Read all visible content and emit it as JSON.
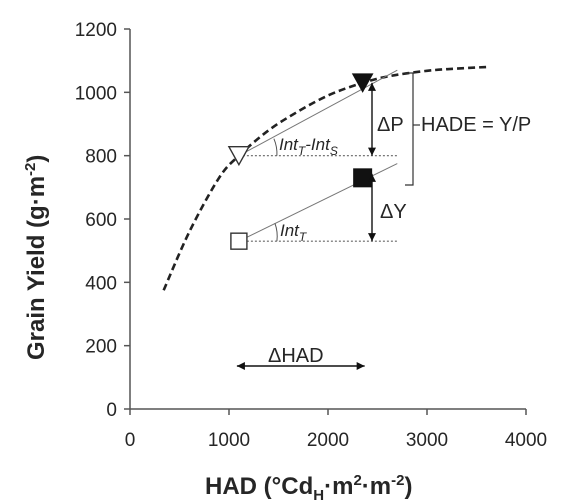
{
  "chart_data": {
    "type": "scatter",
    "title": "",
    "xlabel": "HAD (°Cd",
    "xlabel_sub": "H",
    "xlabel_mid": "·m",
    "xlabel_sup1": "2",
    "xlabel_mid2": "·m",
    "xlabel_sup2": "-2",
    "xlabel_end": ")",
    "ylabel": "Grain Yield (g·m",
    "ylabel_sup": "-2",
    "ylabel_end": ")",
    "xlim": [
      0,
      4000
    ],
    "ylim": [
      0,
      1200
    ],
    "x_ticks": [
      0,
      1000,
      2000,
      3000,
      4000
    ],
    "x_tick_labels": [
      "0",
      "1000",
      "2000",
      "3000",
      "4000"
    ],
    "y_ticks": [
      0,
      200,
      400,
      600,
      800,
      1000,
      1200
    ],
    "y_tick_labels": [
      "0",
      "200",
      "400",
      "600",
      "800",
      "1000",
      "1200"
    ],
    "grid": false,
    "curve": {
      "style": "dashed",
      "x": [
        340,
        600,
        900,
        1100,
        1400,
        1700,
        2000,
        2300,
        2600,
        3000,
        3300,
        3600
      ],
      "y": [
        375,
        560,
        730,
        800,
        880,
        940,
        990,
        1025,
        1050,
        1068,
        1075,
        1080
      ]
    },
    "points": [
      {
        "marker": "open-square",
        "x": 1100,
        "y": 530
      },
      {
        "marker": "filled-square",
        "x": 2350,
        "y": 730
      },
      {
        "marker": "open-triangle-down",
        "x": 1100,
        "y": 800
      },
      {
        "marker": "filled-triangle-down",
        "x": 2350,
        "y": 1030
      }
    ],
    "slope_lines": [
      {
        "x": [
          1100,
          2700
        ],
        "y": [
          530,
          775
        ]
      },
      {
        "x": [
          1100,
          2700
        ],
        "y": [
          800,
          1070
        ]
      }
    ],
    "reference_lines": [
      {
        "x": [
          1100,
          2700
        ],
        "y": [
          530,
          530
        ]
      },
      {
        "x": [
          1100,
          2700
        ],
        "y": [
          800,
          800
        ]
      }
    ],
    "annotations": {
      "delta_p": "ΔP",
      "delta_y": "ΔY",
      "hade": "HADE = Y/P",
      "delta_had": "ΔHAD",
      "int_t": "Int",
      "int_t_sub": "T",
      "int_diff": "Int",
      "int_diff_sub1": "T",
      "int_diff_mid": "-Int",
      "int_diff_sub2": "S"
    }
  }
}
